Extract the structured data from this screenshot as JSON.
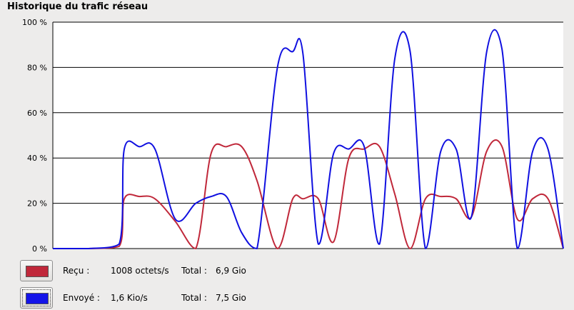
{
  "title": "Historique du trafic réseau",
  "chart_data": {
    "type": "line",
    "ylim": [
      0,
      100
    ],
    "y_ticks": [
      "0 %",
      "20 %",
      "40 %",
      "60 %",
      "80 %",
      "100 %"
    ],
    "y_tick_values": [
      0,
      20,
      40,
      60,
      80,
      100
    ],
    "grid": true,
    "x": [
      0,
      7,
      13,
      14,
      17,
      20,
      24,
      28,
      31,
      34,
      37,
      40,
      44,
      47,
      49,
      52,
      55,
      58,
      61,
      64,
      67,
      70,
      73,
      76,
      79,
      82,
      85,
      88,
      91,
      94,
      97,
      100
    ],
    "series": [
      {
        "color": "#c0283a",
        "values": [
          0,
          0,
          1,
          22,
          23,
          22,
          12,
          0,
          42,
          45,
          45,
          30,
          0,
          22,
          22,
          22,
          3,
          40,
          44,
          45,
          24,
          0,
          22,
          23,
          22,
          14,
          43,
          45,
          13,
          22,
          22,
          0
        ]
      },
      {
        "color": "#1010e0",
        "values": [
          0,
          0,
          2,
          44,
          45,
          44,
          13,
          20,
          23,
          23,
          7,
          0,
          80,
          87,
          86,
          2,
          42,
          44,
          45,
          2,
          84,
          87,
          0,
          43,
          44,
          14,
          87,
          88,
          0,
          43,
          44,
          0
        ]
      }
    ]
  },
  "legend": {
    "received": {
      "color": "#c0283a",
      "label": "Reçu :",
      "rate": "1008 octets/s",
      "total_label": "Total :",
      "total": "6,9 Gio"
    },
    "sent": {
      "color": "#1414e8",
      "label": "Envoyé :",
      "rate": "1,6 Kio/s",
      "total_label": "Total :",
      "total": "7,5 Gio"
    }
  }
}
